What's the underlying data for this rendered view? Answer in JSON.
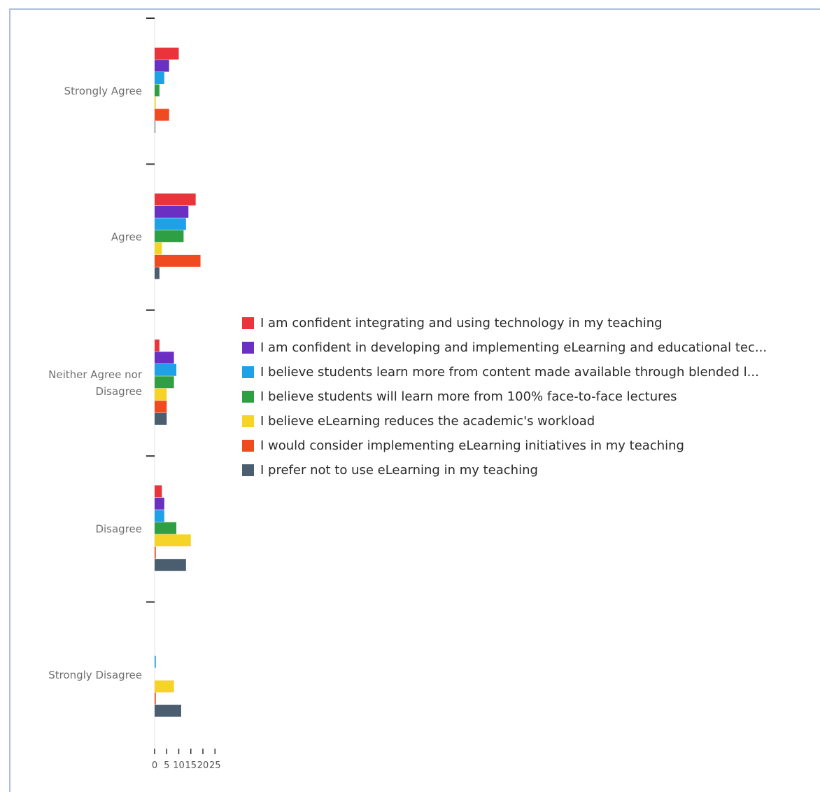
{
  "chart_data": {
    "type": "bar",
    "orientation": "horizontal",
    "categories": [
      "Strongly Agree",
      "Agree",
      "Neither Agree nor Disagree",
      "Disagree",
      "Strongly Disagree"
    ],
    "series": [
      {
        "name": "I am confident integrating and using technology in my teaching",
        "color": "#e8343a",
        "values": [
          10,
          17,
          2,
          3,
          0
        ]
      },
      {
        "name": "I am confident in developing and implementing eLearning and educational tec...",
        "color": "#6930c3",
        "values": [
          6,
          14,
          8,
          4,
          0
        ]
      },
      {
        "name": "I believe students learn more from content made available through blended l...",
        "color": "#1ea1e6",
        "values": [
          4,
          13,
          9,
          4,
          0.5
        ]
      },
      {
        "name": "I believe students will learn more from 100% face-to-face lectures",
        "color": "#2ea043",
        "values": [
          2,
          12,
          8,
          9,
          0
        ]
      },
      {
        "name": "I believe eLearning reduces the academic's workload",
        "color": "#f5d327",
        "values": [
          0.5,
          3,
          5,
          15,
          8
        ]
      },
      {
        "name": "I would consider implementing eLearning initiatives in my teaching",
        "color": "#f04a20",
        "values": [
          6,
          19,
          5,
          0.5,
          0.5
        ]
      },
      {
        "name": "I prefer not to use eLearning in my teaching",
        "color": "#4a5e6f",
        "values": [
          0.3,
          2,
          5,
          13,
          11
        ]
      }
    ],
    "x_ticks": [
      "0",
      "5",
      "10",
      "15",
      "20",
      "25"
    ],
    "xlim": [
      0,
      25
    ],
    "legend_position": "right"
  }
}
